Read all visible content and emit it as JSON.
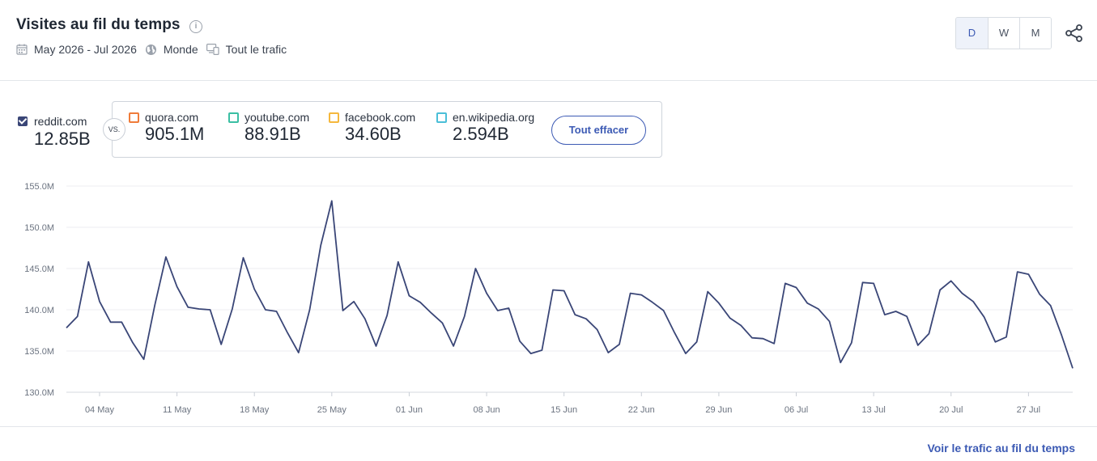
{
  "header": {
    "title": "Visites au fil du temps",
    "date_range": "May 2026 - Jul 2026",
    "region": "Monde",
    "traffic": "Tout le trafic",
    "granularity": [
      "D",
      "W",
      "M"
    ],
    "granularity_selected": "D"
  },
  "main_site": {
    "name": "reddit.com",
    "value": "12.85B",
    "color": "#3a4677"
  },
  "vs_label": "VS.",
  "competitors": [
    {
      "name": "quora.com",
      "value": "905.1M",
      "color": "#f07c3a"
    },
    {
      "name": "youtube.com",
      "value": "88.91B",
      "color": "#3bbfa3"
    },
    {
      "name": "facebook.com",
      "value": "34.60B",
      "color": "#f5b83d"
    },
    {
      "name": "en.wikipedia.org",
      "value": "2.594B",
      "color": "#4bbfd8"
    }
  ],
  "clear_button": "Tout effacer",
  "footer_link": "Voir le trafic au fil du temps",
  "chart_data": {
    "type": "line",
    "series": [
      {
        "name": "reddit.com",
        "color": "#3a4677",
        "values": [
          137.8,
          139.2,
          145.8,
          141.0,
          138.5,
          138.5,
          136.0,
          134.0,
          140.6,
          146.4,
          142.8,
          140.3,
          140.1,
          140.0,
          135.8,
          140.1,
          146.3,
          142.5,
          140.0,
          139.8,
          137.2,
          134.8,
          140.0,
          147.8,
          153.2,
          139.9,
          141.0,
          138.9,
          135.6,
          139.3,
          145.8,
          141.7,
          140.9,
          139.6,
          138.4,
          135.6,
          139.2,
          145.0,
          142.0,
          139.9,
          140.2,
          136.2,
          134.7,
          135.1,
          142.4,
          142.3,
          139.4,
          138.9,
          137.6,
          134.8,
          135.8,
          142.0,
          141.8,
          140.9,
          139.9,
          137.2,
          134.7,
          136.1,
          142.2,
          140.8,
          139.0,
          138.1,
          136.6,
          136.5,
          135.9,
          143.2,
          142.7,
          140.8,
          140.1,
          138.6,
          133.6,
          136.0,
          143.3,
          143.2,
          139.4,
          139.8,
          139.2,
          135.7,
          137.1,
          142.4,
          143.5,
          142.0,
          141.0,
          139.1,
          136.1,
          136.7,
          144.6,
          144.3,
          141.9,
          140.5,
          136.9,
          132.9
        ]
      }
    ],
    "x_tick_labels": [
      "04 May",
      "11 May",
      "18 May",
      "25 May",
      "01 Jun",
      "08 Jun",
      "15 Jun",
      "22 Jun",
      "29 Jun",
      "06 Jul",
      "13 Jul",
      "20 Jul",
      "27 Jul"
    ],
    "x_tick_indices": [
      3,
      10,
      17,
      24,
      31,
      38,
      45,
      52,
      59,
      66,
      73,
      80,
      87
    ],
    "y_tick_labels": [
      "130.0M",
      "135.0M",
      "140.0M",
      "145.0M",
      "150.0M",
      "155.0M"
    ],
    "ylim": [
      130,
      155
    ],
    "grid": true
  }
}
